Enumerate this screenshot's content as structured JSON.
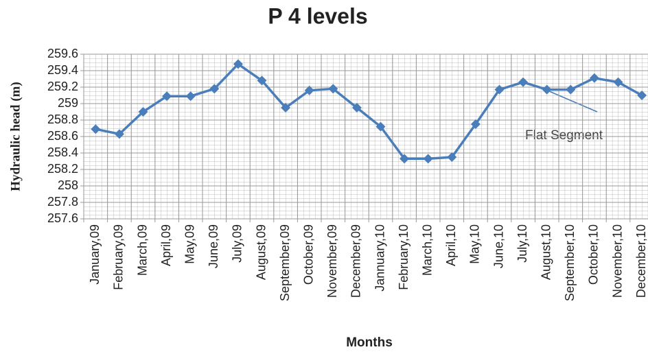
{
  "chart_data": {
    "type": "line",
    "title": "P 4 levels",
    "x_label": "Months",
    "y_label": "Hydraulic head (m)",
    "categories": [
      "January,09",
      "February,09",
      "March,09",
      "April,09",
      "May,09",
      "June,09",
      "July,09",
      "August,09",
      "September,09",
      "October,09",
      "November,09",
      "December,09",
      "Jannuary,10",
      "February,10",
      "March,10",
      "April,10",
      "May,10",
      "June,10",
      "July,10",
      "August,10",
      "September,10",
      "October,10",
      "November,10",
      "December,10"
    ],
    "series": [
      {
        "name": "P 4",
        "color": "#4a7ebb",
        "values": [
          258.69,
          258.63,
          258.9,
          259.09,
          259.09,
          259.18,
          259.48,
          259.28,
          258.95,
          259.16,
          259.18,
          258.95,
          258.72,
          258.33,
          258.33,
          258.35,
          258.75,
          259.17,
          259.26,
          259.17,
          259.17,
          259.31,
          259.26,
          259.1
        ]
      }
    ],
    "ylim": [
      257.6,
      259.6
    ],
    "yticks": [
      257.6,
      257.8,
      258,
      258.2,
      258.4,
      258.6,
      258.8,
      259,
      259.2,
      259.4,
      259.6
    ],
    "grid": true,
    "annotation": "Flat Segment"
  }
}
